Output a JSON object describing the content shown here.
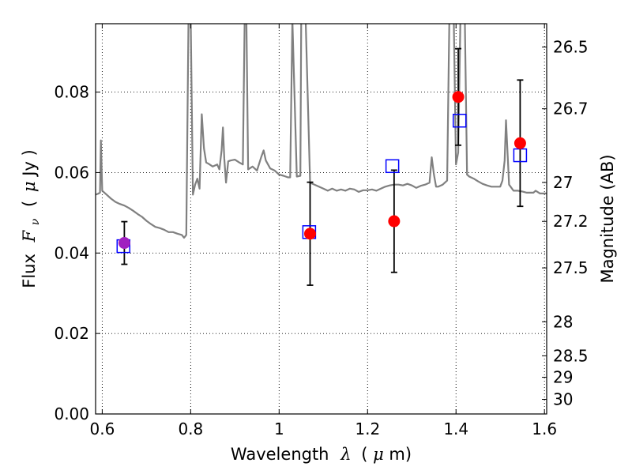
{
  "chart_data": {
    "type": "scatter",
    "title": "",
    "xlabel_prefix": "Wavelength",
    "xlabel_symbol": "λ",
    "xlabel_unit_open": "(",
    "xlabel_unit_mu": "μ",
    "xlabel_unit_rest": "m)",
    "ylabel_prefix": "Flux",
    "ylabel_symbol_main": "F",
    "ylabel_symbol_sub": "ν",
    "ylabel_unit_open": "(",
    "ylabel_unit_mu": "μ",
    "ylabel_unit_rest": "Jy )",
    "y2label": "Magnitude (AB)",
    "xlim": [
      0.585,
      1.605
    ],
    "ylim": [
      0.0,
      0.097
    ],
    "grid": true,
    "grid_style": "dotted",
    "x_ticks": [
      {
        "value": 0.6,
        "label": "0.6"
      },
      {
        "value": 0.8,
        "label": "0.8"
      },
      {
        "value": 1.0,
        "label": "1"
      },
      {
        "value": 1.2,
        "label": "1.2"
      },
      {
        "value": 1.4,
        "label": "1.4"
      },
      {
        "value": 1.6,
        "label": "1.6"
      }
    ],
    "y_ticks": [
      {
        "value": 0.0,
        "label": "0.00"
      },
      {
        "value": 0.02,
        "label": "0.02"
      },
      {
        "value": 0.04,
        "label": "0.04"
      },
      {
        "value": 0.06,
        "label": "0.06"
      },
      {
        "value": 0.08,
        "label": "0.08"
      }
    ],
    "y2_ticks": [
      {
        "mag": 26.5,
        "label": "26.5"
      },
      {
        "mag": 26.7,
        "label": "26.7"
      },
      {
        "mag": 27.0,
        "label": "27"
      },
      {
        "mag": 27.2,
        "label": "27.2"
      },
      {
        "mag": 27.5,
        "label": "27.5"
      },
      {
        "mag": 28.0,
        "label": "28"
      },
      {
        "mag": 28.5,
        "label": "28.5"
      },
      {
        "mag": 29.0,
        "label": "29"
      },
      {
        "mag": 30.0,
        "label": "30"
      }
    ],
    "colors": {
      "model": "#808080",
      "observed": "#ff0000",
      "observed_first": "#a020c0",
      "model_band": "#0000ff",
      "errorbar": "#000000"
    },
    "series": [
      {
        "kind": "line",
        "points": [
          [
            0.585,
            0.0545
          ],
          [
            0.59,
            0.0547
          ],
          [
            0.595,
            0.055
          ],
          [
            0.597,
            0.068
          ],
          [
            0.6,
            0.0555
          ],
          [
            0.61,
            0.0545
          ],
          [
            0.62,
            0.0535
          ],
          [
            0.63,
            0.0527
          ],
          [
            0.64,
            0.0522
          ],
          [
            0.65,
            0.0518
          ],
          [
            0.66,
            0.0512
          ],
          [
            0.67,
            0.0505
          ],
          [
            0.68,
            0.0497
          ],
          [
            0.69,
            0.049
          ],
          [
            0.7,
            0.048
          ],
          [
            0.71,
            0.0472
          ],
          [
            0.72,
            0.0465
          ],
          [
            0.73,
            0.0462
          ],
          [
            0.74,
            0.0458
          ],
          [
            0.75,
            0.0452
          ],
          [
            0.76,
            0.0452
          ],
          [
            0.77,
            0.0448
          ],
          [
            0.78,
            0.0445
          ],
          [
            0.785,
            0.0438
          ],
          [
            0.79,
            0.0445
          ],
          [
            0.795,
            0.098
          ],
          [
            0.8,
            0.098
          ],
          [
            0.805,
            0.0545
          ],
          [
            0.81,
            0.057
          ],
          [
            0.815,
            0.0585
          ],
          [
            0.82,
            0.056
          ],
          [
            0.825,
            0.0745
          ],
          [
            0.83,
            0.066
          ],
          [
            0.835,
            0.0625
          ],
          [
            0.84,
            0.0622
          ],
          [
            0.85,
            0.0615
          ],
          [
            0.86,
            0.062
          ],
          [
            0.865,
            0.0608
          ],
          [
            0.87,
            0.0655
          ],
          [
            0.873,
            0.0712
          ],
          [
            0.876,
            0.0635
          ],
          [
            0.88,
            0.0575
          ],
          [
            0.885,
            0.0628
          ],
          [
            0.89,
            0.063
          ],
          [
            0.9,
            0.0632
          ],
          [
            0.91,
            0.0625
          ],
          [
            0.918,
            0.062
          ],
          [
            0.922,
            0.098
          ],
          [
            0.926,
            0.098
          ],
          [
            0.93,
            0.0608
          ],
          [
            0.94,
            0.0615
          ],
          [
            0.95,
            0.0605
          ],
          [
            0.96,
            0.064
          ],
          [
            0.965,
            0.0655
          ],
          [
            0.97,
            0.063
          ],
          [
            0.98,
            0.061
          ],
          [
            0.99,
            0.0605
          ],
          [
            1.0,
            0.0595
          ],
          [
            1.01,
            0.0592
          ],
          [
            1.02,
            0.0588
          ],
          [
            1.025,
            0.0588
          ],
          [
            1.03,
            0.098
          ],
          [
            1.04,
            0.059
          ],
          [
            1.048,
            0.0592
          ],
          [
            1.05,
            0.098
          ],
          [
            1.06,
            0.098
          ],
          [
            1.07,
            0.0575
          ],
          [
            1.08,
            0.057
          ],
          [
            1.09,
            0.0565
          ],
          [
            1.1,
            0.056
          ],
          [
            1.11,
            0.0555
          ],
          [
            1.12,
            0.056
          ],
          [
            1.13,
            0.0555
          ],
          [
            1.14,
            0.0558
          ],
          [
            1.15,
            0.0555
          ],
          [
            1.16,
            0.056
          ],
          [
            1.17,
            0.0558
          ],
          [
            1.18,
            0.0552
          ],
          [
            1.19,
            0.0556
          ],
          [
            1.2,
            0.0556
          ],
          [
            1.21,
            0.0558
          ],
          [
            1.22,
            0.0555
          ],
          [
            1.23,
            0.056
          ],
          [
            1.24,
            0.0565
          ],
          [
            1.25,
            0.0568
          ],
          [
            1.26,
            0.057
          ],
          [
            1.27,
            0.057
          ],
          [
            1.28,
            0.0568
          ],
          [
            1.29,
            0.0572
          ],
          [
            1.3,
            0.0568
          ],
          [
            1.31,
            0.0562
          ],
          [
            1.32,
            0.0567
          ],
          [
            1.33,
            0.057
          ],
          [
            1.34,
            0.0575
          ],
          [
            1.345,
            0.0638
          ],
          [
            1.35,
            0.0595
          ],
          [
            1.355,
            0.0565
          ],
          [
            1.36,
            0.0565
          ],
          [
            1.37,
            0.057
          ],
          [
            1.38,
            0.058
          ],
          [
            1.385,
            0.098
          ],
          [
            1.395,
            0.098
          ],
          [
            1.4,
            0.062
          ],
          [
            1.405,
            0.065
          ],
          [
            1.41,
            0.098
          ],
          [
            1.42,
            0.098
          ],
          [
            1.425,
            0.0595
          ],
          [
            1.43,
            0.059
          ],
          [
            1.44,
            0.0585
          ],
          [
            1.45,
            0.0578
          ],
          [
            1.46,
            0.0572
          ],
          [
            1.47,
            0.0568
          ],
          [
            1.48,
            0.0565
          ],
          [
            1.49,
            0.0565
          ],
          [
            1.5,
            0.0565
          ],
          [
            1.505,
            0.058
          ],
          [
            1.51,
            0.063
          ],
          [
            1.513,
            0.073
          ],
          [
            1.516,
            0.066
          ],
          [
            1.52,
            0.057
          ],
          [
            1.53,
            0.0555
          ],
          [
            1.54,
            0.0555
          ],
          [
            1.55,
            0.0553
          ],
          [
            1.56,
            0.055
          ],
          [
            1.57,
            0.055
          ],
          [
            1.575,
            0.055
          ],
          [
            1.58,
            0.0555
          ],
          [
            1.59,
            0.0548
          ],
          [
            1.6,
            0.0548
          ],
          [
            1.605,
            0.0548
          ]
        ]
      },
      {
        "kind": "model_band",
        "points": [
          {
            "x": 0.648,
            "y": 0.0417
          },
          {
            "x": 1.068,
            "y": 0.0452
          },
          {
            "x": 1.256,
            "y": 0.0616
          },
          {
            "x": 1.408,
            "y": 0.0729
          },
          {
            "x": 1.545,
            "y": 0.0643
          }
        ]
      },
      {
        "kind": "observed",
        "points": [
          {
            "x": 0.65,
            "y": 0.0425,
            "err": 0.0053
          },
          {
            "x": 1.07,
            "y": 0.0448,
            "err": 0.0128
          },
          {
            "x": 1.26,
            "y": 0.0479,
            "err": 0.0127
          },
          {
            "x": 1.405,
            "y": 0.0788,
            "err": 0.012
          },
          {
            "x": 1.545,
            "y": 0.0673,
            "err": 0.0157
          }
        ]
      }
    ]
  }
}
